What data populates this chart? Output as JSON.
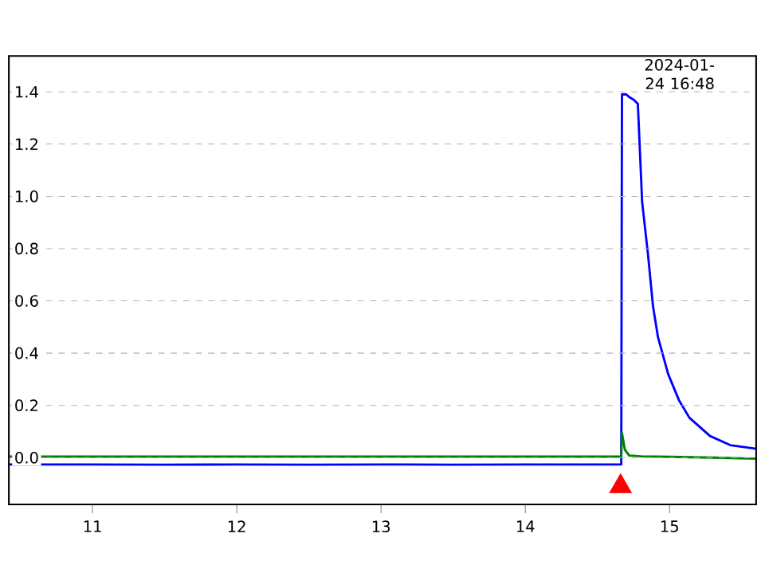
{
  "chart_data": {
    "type": "line",
    "xlim": [
      10.42,
      15.6
    ],
    "ylim": [
      -0.179,
      1.537
    ],
    "xticks": [
      11,
      12,
      13,
      14,
      15
    ],
    "yticks": [
      {
        "value": 0,
        "label": "0.0"
      },
      {
        "value": 0.2,
        "label": "0.2"
      },
      {
        "value": 0.4,
        "label": "0.4"
      },
      {
        "value": 0.6,
        "label": "0.6"
      },
      {
        "value": 0.8,
        "label": "0.8"
      },
      {
        "value": 1.0,
        "label": "1.0"
      },
      {
        "value": 1.2,
        "label": "1.2"
      },
      {
        "value": 1.4,
        "label": "1.4"
      }
    ],
    "grid": "y",
    "marker": "none",
    "series": [
      {
        "color": "#0000ff",
        "x": [
          10.42,
          11.0,
          11.5,
          12.0,
          12.5,
          13.0,
          13.5,
          14.0,
          14.5,
          14.665,
          14.67,
          14.7,
          14.72,
          14.75,
          14.78,
          14.81,
          14.85,
          14.885,
          14.92,
          14.99,
          15.065,
          15.137,
          15.28,
          15.42,
          15.6
        ],
        "values": [
          -0.026,
          -0.026,
          -0.027,
          -0.026,
          -0.027,
          -0.026,
          -0.027,
          -0.026,
          -0.026,
          -0.026,
          1.39,
          1.39,
          1.38,
          1.37,
          1.354,
          0.977,
          0.78,
          0.58,
          0.46,
          0.32,
          0.22,
          0.153,
          0.083,
          0.048,
          0.034
        ]
      },
      {
        "color": "#008000",
        "x": [
          10.42,
          11.0,
          12.0,
          13.0,
          14.0,
          14.665,
          14.67,
          14.69,
          14.72,
          14.8,
          15.0,
          15.3,
          15.6
        ],
        "values": [
          0.004,
          0.004,
          0.004,
          0.004,
          0.004,
          0.004,
          0.095,
          0.03,
          0.008,
          0.005,
          0.003,
          0.0,
          -0.004
        ]
      },
      {
        "type": "scatter",
        "marker": "triangle",
        "color": "#ff0000",
        "x": [
          14.66
        ],
        "values": [
          -0.11
        ]
      }
    ],
    "annotations": [
      {
        "text": "2024-01-24 16:48",
        "x": 14.67,
        "y": 1.4
      }
    ]
  }
}
